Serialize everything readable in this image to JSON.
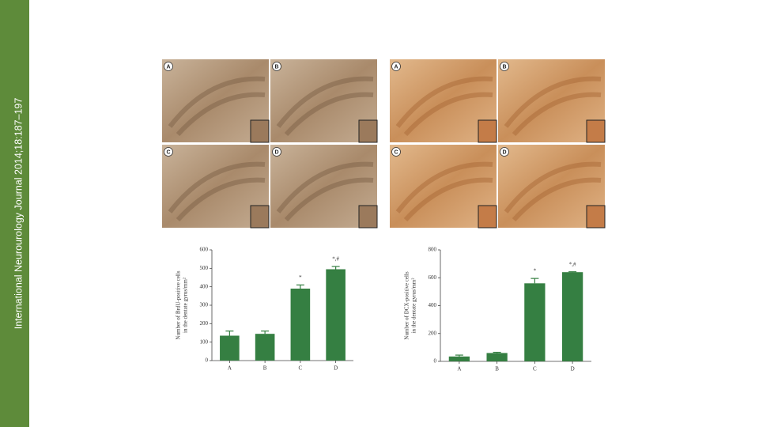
{
  "sidebar": "International Neurourology Journal 2014;18:187–197",
  "panels": {
    "left": [
      "A",
      "B",
      "C",
      "D"
    ],
    "right": [
      "A",
      "B",
      "C",
      "D"
    ]
  },
  "chart_data": [
    {
      "type": "bar",
      "ylabel": [
        "Number of BrdU-positive cells",
        "in the dentate gyrus/mm²"
      ],
      "categories": [
        "A",
        "B",
        "C",
        "D"
      ],
      "values": [
        135,
        145,
        390,
        495
      ],
      "errors": [
        25,
        15,
        20,
        15
      ],
      "annotations": [
        null,
        null,
        "*",
        "*,#"
      ],
      "color": "#357f42",
      "ylim": [
        0,
        600
      ],
      "yticks": [
        0,
        100,
        200,
        300,
        400,
        500,
        600
      ]
    },
    {
      "type": "bar",
      "ylabel": [
        "Number of DCX-positive cells",
        "in the dentate gyrus/mm²"
      ],
      "categories": [
        "A",
        "B",
        "C",
        "D"
      ],
      "values": [
        35,
        60,
        560,
        640
      ],
      "errors": [
        10,
        5,
        35,
        3
      ],
      "annotations": [
        null,
        null,
        "*",
        "*,#"
      ],
      "color": "#357f42",
      "ylim": [
        0,
        800
      ],
      "yticks": [
        0,
        200,
        400,
        600,
        800
      ]
    }
  ]
}
